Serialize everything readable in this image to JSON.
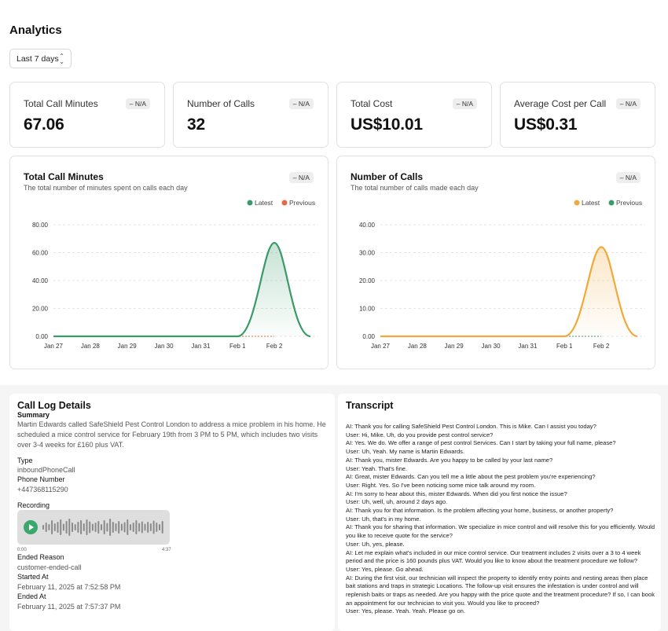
{
  "header": {
    "title": "Analytics"
  },
  "filter": {
    "date_range": "Last 7 days"
  },
  "stats": [
    {
      "label": "Total Call Minutes",
      "value": "67.06",
      "badge": "– N/A"
    },
    {
      "label": "Number of Calls",
      "value": "32",
      "badge": "– N/A"
    },
    {
      "label": "Total Cost",
      "value": "US$10.01",
      "badge": "– N/A"
    },
    {
      "label": "Average Cost per Call",
      "value": "US$0.31",
      "badge": "– N/A"
    }
  ],
  "colors": {
    "green": "#3a9a68",
    "orange": "#f0a93a",
    "red_orange": "#e46a43"
  },
  "chart_data": [
    {
      "type": "area",
      "title": "Total Call Minutes",
      "subtitle": "The total number of minutes spent on calls each day",
      "badge": "– N/A",
      "categories": [
        "Jan 27",
        "Jan 28",
        "Jan 29",
        "Jan 30",
        "Jan 31",
        "Feb 1",
        "Feb 2"
      ],
      "y_ticks": [
        "0.00",
        "20.00",
        "40.00",
        "60.00",
        "80.00"
      ],
      "ylim": [
        0,
        80
      ],
      "legend": [
        "Latest",
        "Previous"
      ],
      "legend_position": "top-right",
      "series": [
        {
          "name": "Latest",
          "color": "#3a9a68",
          "values": [
            0,
            0,
            0,
            0,
            0,
            0,
            67.06
          ]
        },
        {
          "name": "Previous",
          "color": "#e46a43",
          "values": [
            0,
            0,
            0,
            0,
            0,
            0,
            0
          ]
        }
      ]
    },
    {
      "type": "area",
      "title": "Number of Calls",
      "subtitle": "The total number of calls made each day",
      "badge": "– N/A",
      "categories": [
        "Jan 27",
        "Jan 28",
        "Jan 29",
        "Jan 30",
        "Jan 31",
        "Feb 1",
        "Feb 2"
      ],
      "y_ticks": [
        "0.00",
        "10.00",
        "20.00",
        "30.00",
        "40.00"
      ],
      "ylim": [
        0,
        40
      ],
      "legend": [
        "Latest",
        "Previous"
      ],
      "legend_position": "top-right",
      "series": [
        {
          "name": "Latest",
          "color": "#f0a93a",
          "values": [
            0,
            0,
            0,
            0,
            0,
            0,
            32
          ]
        },
        {
          "name": "Previous",
          "color": "#3a9a68",
          "values": [
            0,
            0,
            0,
            0,
            0,
            0,
            0
          ]
        }
      ]
    }
  ],
  "call_log": {
    "title": "Call Log Details",
    "summary_label": "Summary",
    "summary": "Martin Edwards called SafeShield Pest Control London to address a mice problem in his home. He scheduled a mice control service for February 19th from 3 PM to 5 PM, which includes two visits over 3-4 weeks for £160 plus VAT.",
    "type_label": "Type",
    "type_value": "inboundPhoneCall",
    "phone_label": "Phone Number",
    "phone_value": "+447368115290",
    "recording_label": "Recording",
    "time_start": "0:00",
    "time_end": "4:37",
    "ended_reason_label": "Ended Reason",
    "ended_reason": "customer-ended-call",
    "started_label": "Started At",
    "started_at": "February 11, 2025 at 7:52:58 PM",
    "ended_label": "Ended At",
    "ended_at": "February 11, 2025 at 7:57:37 PM"
  },
  "transcript": {
    "title": "Transcript",
    "lines": [
      "AI: Thank you for calling SafeShield Pest Control London. This is Mike. Can I assist you today?",
      "User: Hi, Mike. Uh, do you provide pest control service?",
      "AI: Yes. We do. We offer a range of pest control Services. Can I start by taking your full name, please?",
      "User: Uh, Yeah. My name is Martin Edwards.",
      "AI: Thank you, mister Edwards. Are you happy to be called by your last name?",
      "User: Yeah. That's fine.",
      "AI: Great, mister Edwards. Can you tell me a little about the pest problem you're experiencing?",
      "User: Right. Yes. So I've been noticing some mice talk around my room.",
      "AI: I'm sorry to hear about this, mister Edwards. When did you first notice the issue?",
      "User: Uh, well, uh, around 2 days ago.",
      "AI: Thank you for that information. Is the problem affecting your home, business, or another property?",
      "User: Uh, that's in my home.",
      "AI: Thank you for sharing that information. We specialize in mice control and will resolve this for you efficiently. Would you like to receive quote for the service?",
      "User: Uh, yes, please.",
      "AI: Let me explain what's included in our mice control service. Our treatment includes 2 visits over a 3 to 4 week period and the price is 160 pounds plus VAT. Would you like to know about the treatment procedure we follow?",
      "User: Yes, please. Go ahead.",
      "AI: During the first visit, our technician will inspect the property to identify entry points and nesting areas then place bait stations and traps in strategic Locations. The follow-up visit ensures the infestation is under control and will replenish baits or traps as needed. Are you happy with the price quote and the treatment procedure? If so, I can book an appointment for our technician to visit you. Would you like to proceed?",
      "User: Yes, please. Yeah. Yeah. Please go on."
    ]
  }
}
